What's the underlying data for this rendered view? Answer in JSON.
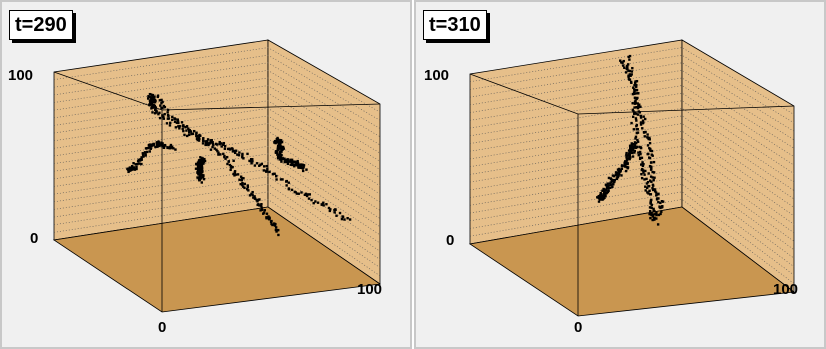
{
  "chart_data": [
    {
      "type": "scatter",
      "title": "t=290",
      "tick_labels": {
        "z_top": "100",
        "z_bottom": "0",
        "x_origin": "0",
        "y_far": "100"
      },
      "axis_range": [
        0,
        100
      ],
      "colors": {
        "walls": "#e6bf8a",
        "floor": "#c99650",
        "points": "#000000",
        "grid": "#555555",
        "background": "#f0f0f0"
      },
      "strands": [
        [
          [
            32,
            0,
            70
          ],
          [
            30,
            18,
            72
          ],
          [
            28,
            38,
            73
          ],
          [
            24,
            55,
            76
          ],
          [
            30,
            70,
            74
          ],
          [
            36,
            82,
            70
          ],
          [
            42,
            96,
            68
          ]
        ],
        [
          [
            5,
            40,
            56
          ],
          [
            10,
            48,
            52
          ],
          [
            18,
            56,
            53
          ],
          [
            26,
            64,
            55
          ],
          [
            34,
            74,
            52
          ],
          [
            42,
            84,
            47
          ],
          [
            50,
            90,
            42
          ]
        ],
        [
          [
            40,
            88,
            70
          ],
          [
            44,
            80,
            62
          ],
          [
            48,
            70,
            58
          ],
          [
            50,
            60,
            56
          ],
          [
            52,
            50,
            58
          ],
          [
            56,
            40,
            56
          ],
          [
            62,
            30,
            52
          ],
          [
            70,
            20,
            44
          ],
          [
            80,
            12,
            38
          ],
          [
            90,
            8,
            30
          ]
        ],
        [
          [
            34,
            30,
            60
          ],
          [
            38,
            40,
            55
          ],
          [
            42,
            50,
            50
          ],
          [
            46,
            58,
            45
          ],
          [
            50,
            66,
            40
          ],
          [
            54,
            74,
            36
          ],
          [
            58,
            82,
            30
          ],
          [
            62,
            88,
            25
          ]
        ],
        [
          [
            68,
            5,
            60
          ],
          [
            70,
            15,
            58
          ],
          [
            72,
            25,
            55
          ],
          [
            74,
            38,
            52
          ],
          [
            78,
            50,
            50
          ],
          [
            84,
            60,
            48
          ],
          [
            90,
            72,
            46
          ],
          [
            94,
            84,
            42
          ]
        ],
        [
          [
            50,
            38,
            52
          ],
          [
            52,
            30,
            46
          ],
          [
            54,
            22,
            40
          ],
          [
            56,
            14,
            34
          ],
          [
            58,
            8,
            28
          ]
        ]
      ]
    },
    {
      "type": "scatter",
      "title": "t=310",
      "tick_labels": {
        "z_top": "100",
        "z_bottom": "0",
        "x_origin": "0",
        "y_far": "100"
      },
      "axis_range": [
        0,
        100
      ],
      "colors": {
        "walls": "#e6bf8a",
        "floor": "#c99650",
        "points": "#000000",
        "grid": "#555555",
        "background": "#f0f0f0"
      },
      "strands": [
        [
          [
            38,
            30,
            60
          ],
          [
            45,
            40,
            63
          ],
          [
            52,
            52,
            60
          ],
          [
            55,
            62,
            52
          ],
          [
            52,
            66,
            42
          ],
          [
            45,
            62,
            36
          ],
          [
            38,
            52,
            36
          ],
          [
            30,
            40,
            40
          ],
          [
            28,
            32,
            48
          ],
          [
            32,
            28,
            56
          ],
          [
            38,
            30,
            60
          ]
        ],
        [
          [
            60,
            80,
            92
          ],
          [
            64,
            76,
            80
          ],
          [
            62,
            72,
            66
          ],
          [
            62,
            68,
            52
          ],
          [
            62,
            64,
            40
          ],
          [
            64,
            62,
            28
          ],
          [
            66,
            60,
            16
          ]
        ],
        [
          [
            72,
            98,
            84
          ],
          [
            74,
            96,
            70
          ],
          [
            76,
            94,
            58
          ],
          [
            78,
            92,
            46
          ],
          [
            80,
            92,
            34
          ],
          [
            80,
            92,
            22
          ],
          [
            84,
            90,
            12
          ],
          [
            78,
            88,
            8
          ]
        ]
      ]
    }
  ]
}
